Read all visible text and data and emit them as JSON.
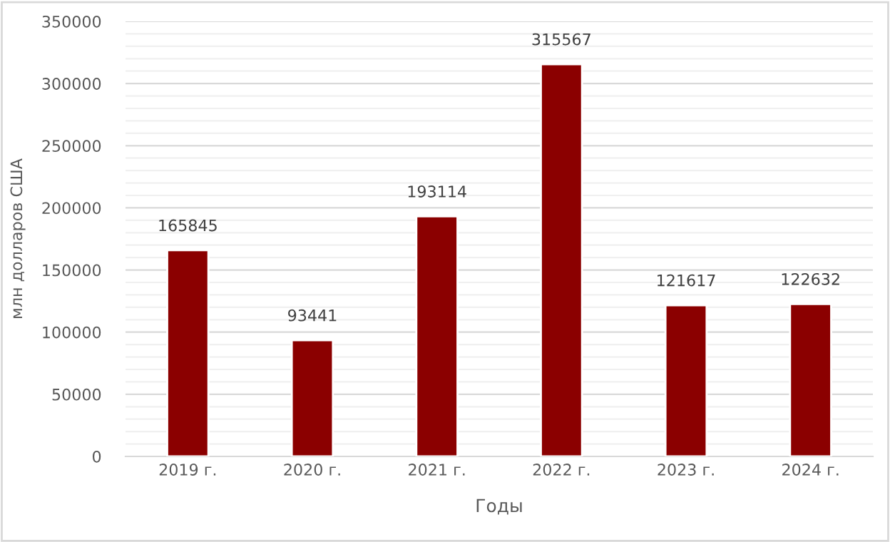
{
  "chart_data": {
    "type": "bar",
    "xlabel": "Годы",
    "ylabel": "млн долларов США",
    "categories": [
      "2019 г.",
      "2020 г.",
      "2021 г.",
      "2022 г.",
      "2023 г.",
      "2024 г."
    ],
    "values": [
      165845,
      93441,
      193114,
      315567,
      121617,
      122632
    ],
    "color": "#8b0000",
    "data_labels": true,
    "ylim": [
      0,
      350000
    ],
    "yticks": [
      0,
      50000,
      100000,
      150000,
      200000,
      250000,
      300000,
      350000
    ],
    "grid": "y"
  }
}
